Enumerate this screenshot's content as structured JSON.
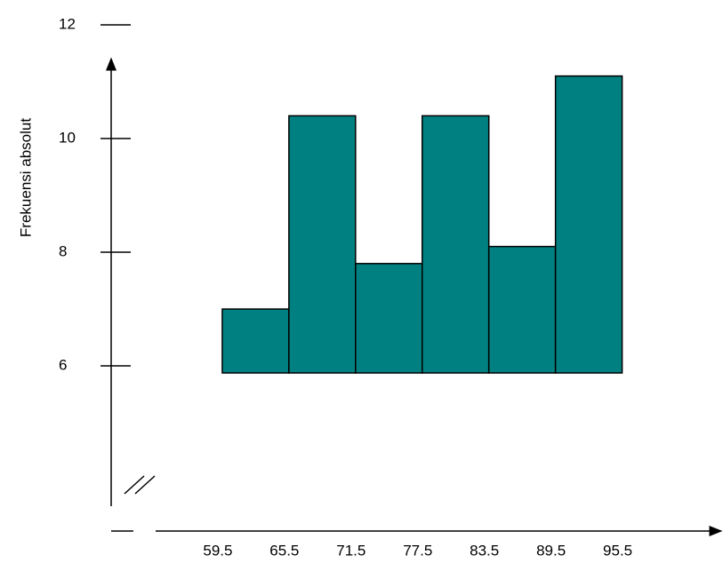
{
  "chart_data": {
    "type": "histogram",
    "y_label": "Frekuensi absolut",
    "bins": [
      59.5,
      65.5,
      71.5,
      77.5,
      83.5,
      89.5,
      95.5
    ],
    "values": [
      7,
      10.4,
      7.8,
      10.4,
      8.1,
      11.1
    ],
    "color": "#008080",
    "xlim": [
      49.5,
      104.5
    ],
    "ylim": [
      3,
      12
    ],
    "yticks": [
      6,
      8,
      10,
      12
    ]
  }
}
